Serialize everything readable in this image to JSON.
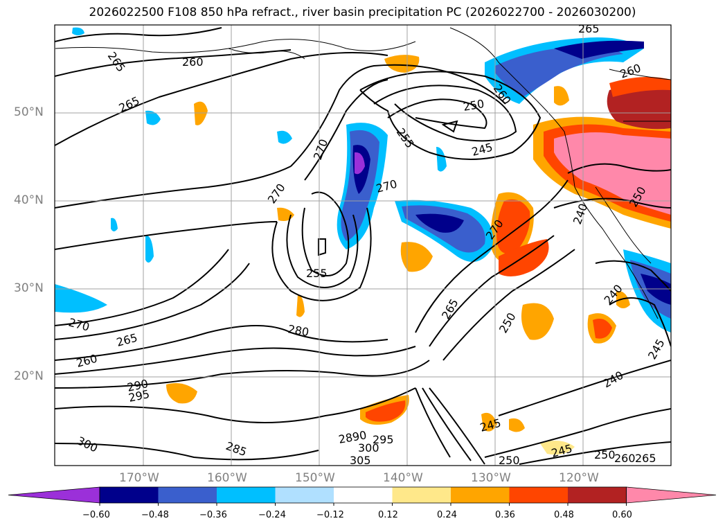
{
  "title": "2026022500 F108 850 hPa refract., river basin precipitation PC (2026022700 - 2026030200)",
  "lat_labels": [
    "50°N",
    "40°N",
    "30°N",
    "20°N"
  ],
  "lon_labels": [
    "170°W",
    "160°W",
    "150°W",
    "140°W",
    "130°W",
    "120°W"
  ],
  "contour_labels": [
    "265",
    "260",
    "265",
    "265",
    "260",
    "250",
    "255",
    "260",
    "245",
    "270",
    "270",
    "270",
    "255",
    "270",
    "265",
    "250",
    "280",
    "270",
    "265",
    "260",
    "290",
    "295",
    "300",
    "285",
    "2890",
    "305",
    "300",
    "295",
    "245",
    "245",
    "250",
    "240",
    "250",
    "240",
    "260",
    "265",
    "245",
    "250",
    "240"
  ],
  "colorbar": {
    "ticks": [
      "−0.60",
      "−0.48",
      "−0.36",
      "−0.24",
      "−0.12",
      "0.12",
      "0.24",
      "0.36",
      "0.48",
      "0.60"
    ],
    "colors": [
      "#9b30d9",
      "#00008b",
      "#3a5fcd",
      "#00bfff",
      "#b0e0ff",
      "#ffffff",
      "#ffe88a",
      "#ffa500",
      "#ff4500",
      "#b22222",
      "#ff88aa"
    ]
  },
  "colors": {
    "land_outline": "#000000",
    "contour": "#000000",
    "grid": "#a0a0a0"
  }
}
